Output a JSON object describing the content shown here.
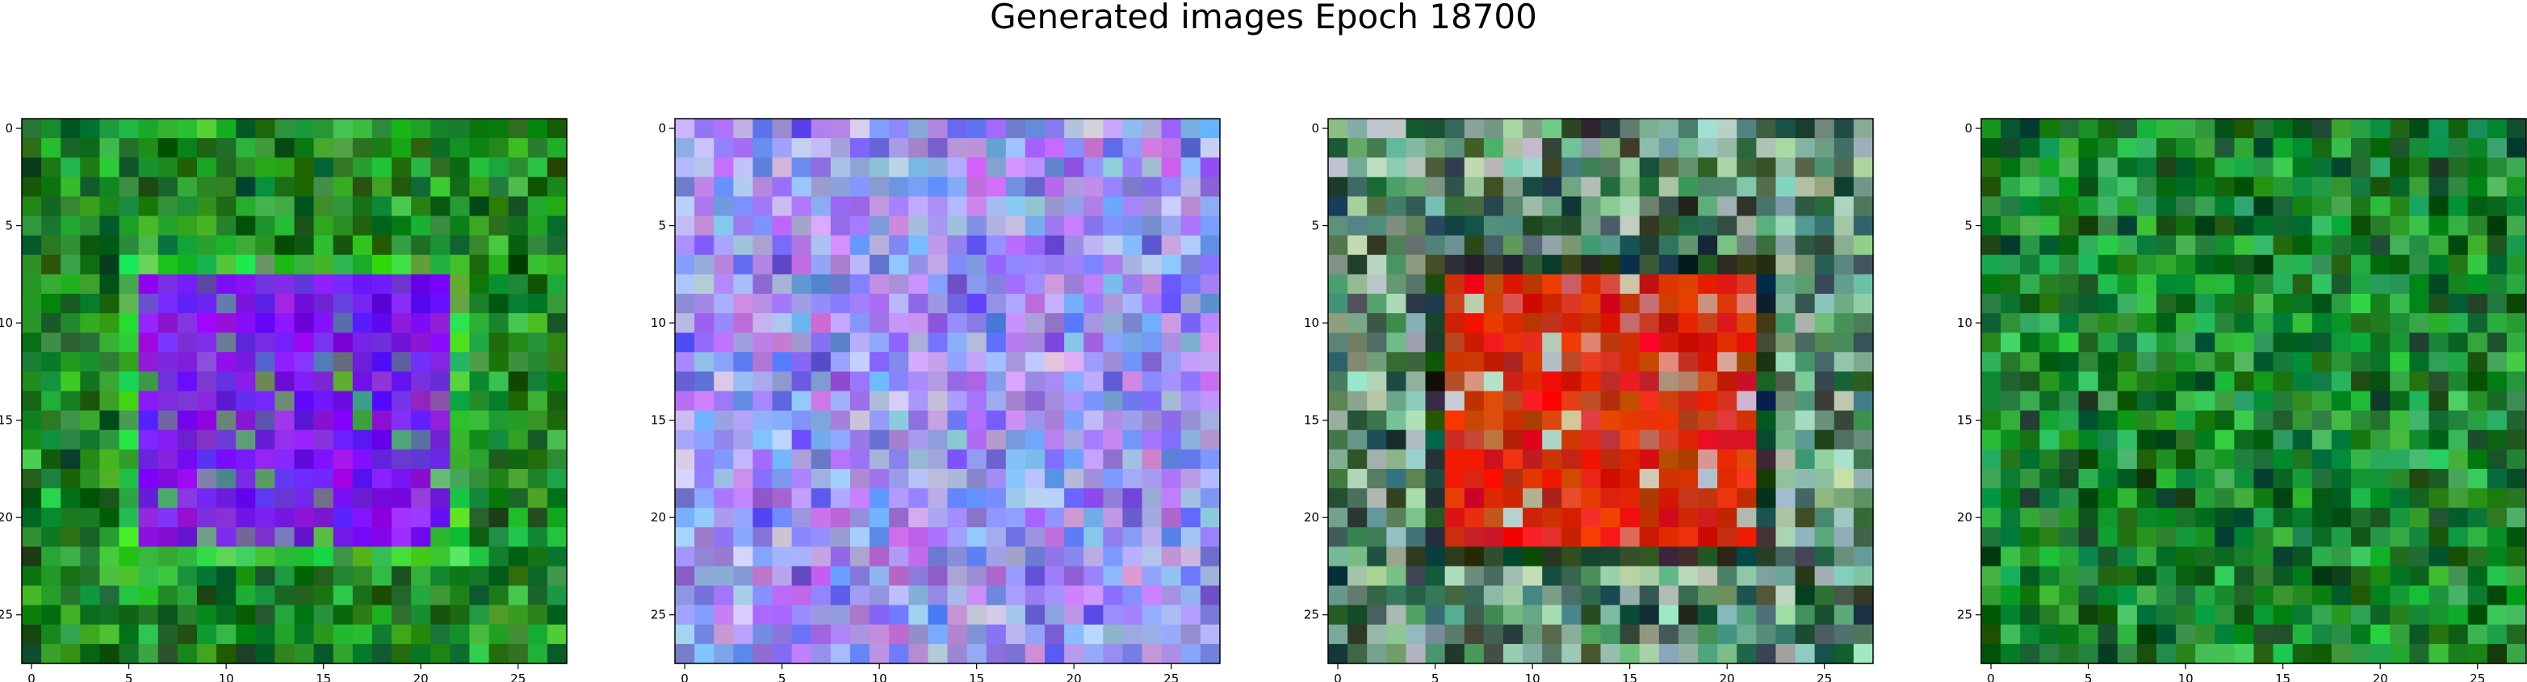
{
  "title": "Generated images Epoch 18700",
  "chart_data": [
    {
      "type": "heatmap",
      "kind": "rgb-image",
      "grid": [
        28,
        28
      ],
      "xticks": [
        0,
        5,
        10,
        15,
        20,
        25
      ],
      "yticks": [
        0,
        5,
        10,
        15,
        20,
        25
      ],
      "palette": {
        "base": "#1f8a2a",
        "bright": "#3fbf3a",
        "dark": "#0b4f12",
        "inner": "#8a1bf2",
        "inner_alt": "#6a1ee8"
      }
    },
    {
      "type": "heatmap",
      "kind": "rgb-image",
      "grid": [
        28,
        28
      ],
      "xticks": [
        0,
        5,
        10,
        15,
        20,
        25
      ],
      "yticks": [
        0,
        5,
        10,
        15,
        20,
        25
      ],
      "palette": {
        "base": "#8fa8ef",
        "bright": "#c7b6f5",
        "dark": "#5a3ae0",
        "inner": "#9b8df0",
        "inner_alt": "#b57be8"
      }
    },
    {
      "type": "heatmap",
      "kind": "rgb-image",
      "grid": [
        28,
        28
      ],
      "xticks": [
        0,
        5,
        10,
        15,
        20,
        25
      ],
      "yticks": [
        0,
        5,
        10,
        15,
        20,
        25
      ],
      "palette": {
        "base": "#5f9a7a",
        "bright": "#b5d5c0",
        "dark": "#1c3a2a",
        "inner": "#e41a0a",
        "inner_alt": "#c43a0a"
      }
    },
    {
      "type": "heatmap",
      "kind": "rgb-image",
      "grid": [
        28,
        28
      ],
      "xticks": [
        0,
        5,
        10,
        15,
        20,
        25
      ],
      "yticks": [
        0,
        5,
        10,
        15,
        20,
        25
      ],
      "palette": {
        "base": "#13862a",
        "bright": "#3fbf5a",
        "dark": "#0a4a18",
        "inner": "#1a9a3a",
        "inner_alt": "#2aa848"
      }
    }
  ]
}
